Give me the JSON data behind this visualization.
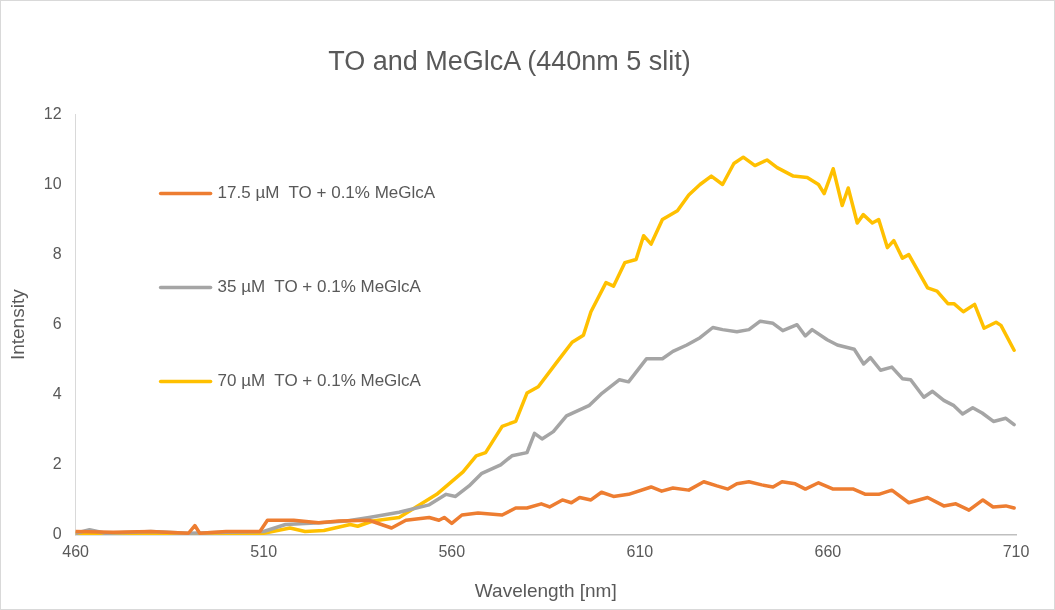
{
  "chart_data": {
    "type": "line",
    "title": "TO and MeGlcA (440nm 5 slit)",
    "xlabel": "Wavelength [nm]",
    "ylabel": "Intensity",
    "xlim": [
      460,
      710
    ],
    "xticks": [
      460,
      510,
      560,
      610,
      660,
      710
    ],
    "ylim": [
      0,
      12
    ],
    "yticks": [
      0,
      2,
      4,
      6,
      8,
      10,
      12
    ],
    "grid": false,
    "legend": "left",
    "marker": "none",
    "line_style": "solid",
    "series": [
      {
        "name": "17.5 µM  TO + 0.1% MeGlcA",
        "color": "#ed7d31",
        "x": [
          460,
          470,
          480,
          490,
          491.7,
          493,
          500,
          509,
          511,
          518,
          524.6,
          530,
          538,
          544,
          547.8,
          554,
          556.6,
          558,
          560,
          562.7,
          567,
          573.4,
          577,
          580,
          583.8,
          586,
          589.4,
          591.8,
          594,
          597,
          599.8,
          603,
          607,
          613,
          615.8,
          618.8,
          623,
          627,
          630.5,
          633.4,
          635.8,
          639,
          642.4,
          645.4,
          647.8,
          651.3,
          654,
          657.5,
          661.4,
          666.8,
          670,
          673.5,
          677,
          681.5,
          686.5,
          690.8,
          694,
          697.5,
          701.2,
          703.9,
          707.3,
          709.5
        ],
        "values": [
          0.1,
          0.08,
          0.1,
          0.05,
          0.27,
          0.05,
          0.1,
          0.1,
          0.42,
          0.42,
          0.35,
          0.4,
          0.42,
          0.2,
          0.42,
          0.5,
          0.42,
          0.5,
          0.33,
          0.57,
          0.63,
          0.57,
          0.77,
          0.77,
          0.89,
          0.8,
          1.0,
          0.92,
          1.07,
          1.0,
          1.22,
          1.1,
          1.16,
          1.37,
          1.25,
          1.34,
          1.28,
          1.52,
          1.4,
          1.31,
          1.46,
          1.52,
          1.43,
          1.37,
          1.52,
          1.46,
          1.31,
          1.49,
          1.31,
          1.31,
          1.16,
          1.16,
          1.28,
          0.92,
          1.07,
          0.83,
          0.89,
          0.71,
          1.0,
          0.8,
          0.83,
          0.77
        ]
      },
      {
        "name": "35 µM  TO + 0.1% MeGlcA",
        "color": "#a5a5a5",
        "x": [
          460,
          463.7,
          468,
          480,
          490,
          500,
          510,
          515.8,
          525,
          532,
          538,
          546,
          554,
          558.5,
          561,
          564.6,
          568,
          573,
          576,
          580,
          582,
          584,
          587,
          590.5,
          596.6,
          600,
          604.6,
          607,
          611.8,
          616,
          618.8,
          622.5,
          626,
          629.4,
          632,
          635.8,
          639,
          642,
          645.4,
          648,
          651.8,
          654,
          655.8,
          659.8,
          662.5,
          667,
          669.5,
          671.3,
          674,
          677,
          679.8,
          682,
          685.5,
          687.8,
          690.8,
          693.5,
          695.8,
          698.5,
          701,
          704,
          707.3,
          709.5
        ],
        "values": [
          0.05,
          0.15,
          0.05,
          0.1,
          0.05,
          0.08,
          0.1,
          0.3,
          0.35,
          0.4,
          0.5,
          0.65,
          0.86,
          1.16,
          1.1,
          1.4,
          1.76,
          2.0,
          2.26,
          2.35,
          2.9,
          2.74,
          2.95,
          3.4,
          3.7,
          4.05,
          4.43,
          4.37,
          5.03,
          5.03,
          5.24,
          5.42,
          5.63,
          5.92,
          5.86,
          5.8,
          5.86,
          6.1,
          6.04,
          5.83,
          6.0,
          5.68,
          5.86,
          5.57,
          5.42,
          5.3,
          4.88,
          5.06,
          4.7,
          4.79,
          4.46,
          4.43,
          3.93,
          4.1,
          3.84,
          3.69,
          3.45,
          3.63,
          3.48,
          3.24,
          3.33,
          3.15
        ]
      },
      {
        "name": "70 µM  TO + 0.1% MeGlcA",
        "color": "#ffc000",
        "x": [
          460,
          470,
          480,
          490,
          500,
          510,
          517,
          521,
          526,
          533,
          535,
          539,
          546,
          556,
          563,
          566.5,
          569,
          573.4,
          577,
          580,
          583,
          588,
          592,
          595,
          597,
          601,
          603,
          606,
          609,
          611,
          613,
          616,
          620,
          623,
          626,
          629,
          632,
          635,
          637.5,
          640.6,
          643.8,
          646.5,
          650.8,
          654.5,
          657.5,
          659,
          661.4,
          663.8,
          665.4,
          667.8,
          669.4,
          671.8,
          673.5,
          675.8,
          677.5,
          679.8,
          681.5,
          686.5,
          689,
          691.9,
          693.5,
          696,
          699,
          701.5,
          704.7,
          706,
          709.5
        ],
        "values": [
          0.05,
          0.02,
          0.02,
          0.0,
          0.05,
          0.05,
          0.2,
          0.1,
          0.13,
          0.3,
          0.25,
          0.4,
          0.5,
          1.16,
          1.8,
          2.26,
          2.35,
          3.1,
          3.24,
          4.05,
          4.23,
          4.94,
          5.5,
          5.7,
          6.37,
          7.2,
          7.1,
          7.77,
          7.86,
          8.54,
          8.3,
          9.0,
          9.25,
          9.7,
          10.0,
          10.24,
          10.0,
          10.6,
          10.78,
          10.54,
          10.7,
          10.48,
          10.24,
          10.2,
          10.0,
          9.74,
          10.45,
          9.4,
          9.9,
          8.9,
          9.14,
          8.9,
          9.0,
          8.2,
          8.4,
          7.9,
          8.0,
          7.05,
          6.96,
          6.6,
          6.6,
          6.37,
          6.58,
          5.9,
          6.07,
          5.98,
          5.27
        ]
      }
    ]
  }
}
